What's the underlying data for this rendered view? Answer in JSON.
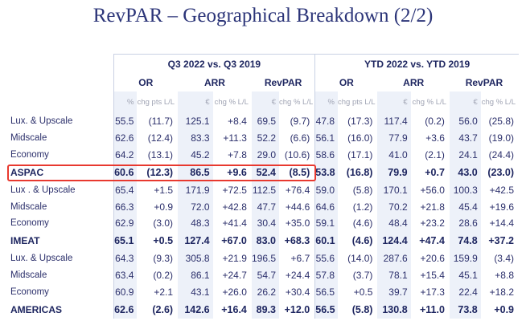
{
  "title": "RevPAR – Geographical Breakdown (2/2)",
  "period_headers": [
    "Q3 2022 vs. Q3 2019",
    "YTD 2022 vs. YTD 2019"
  ],
  "metric_headers": [
    "OR",
    "ARR",
    "RevPAR",
    "OR",
    "ARR",
    "RevPAR"
  ],
  "unit_headers": [
    "%",
    "chg pts L/L",
    "€",
    "chg % L/L",
    "€",
    "chg % L/L",
    "%",
    "chg pts L/L",
    "€",
    "chg % L/L",
    "€",
    "chg % L/L"
  ],
  "rows": [
    {
      "label": "Lux. & Upscale",
      "type": "segment",
      "v": [
        "55.5",
        "(11.7)",
        "125.1",
        "+8.4",
        "69.5",
        "(9.7)",
        "47.8",
        "(17.3)",
        "117.4",
        "(0.2)",
        "56.0",
        "(25.8)"
      ]
    },
    {
      "label": "Midscale",
      "type": "segment",
      "v": [
        "62.6",
        "(12.4)",
        "83.3",
        "+11.3",
        "52.2",
        "(6.6)",
        "56.1",
        "(16.0)",
        "77.9",
        "+3.6",
        "43.7",
        "(19.0)"
      ]
    },
    {
      "label": "Economy",
      "type": "segment",
      "v": [
        "64.2",
        "(13.1)",
        "45.2",
        "+7.8",
        "29.0",
        "(10.6)",
        "58.6",
        "(17.1)",
        "41.0",
        "(2.1)",
        "24.1",
        "(24.4)"
      ]
    },
    {
      "label": "ASPAC",
      "type": "region",
      "v": [
        "60.6",
        "(12.3)",
        "86.5",
        "+9.6",
        "52.4",
        "(8.5)",
        "53.8",
        "(16.8)",
        "79.9",
        "+0.7",
        "43.0",
        "(23.0)"
      ]
    },
    {
      "label": "Lux . & Upscale",
      "type": "segment",
      "v": [
        "65.4",
        "+1.5",
        "171.9",
        "+72.5",
        "112.5",
        "+76.4",
        "59.0",
        "(5.8)",
        "170.1",
        "+56.0",
        "100.3",
        "+42.5"
      ]
    },
    {
      "label": "Midscale",
      "type": "segment",
      "v": [
        "66.3",
        "+0.9",
        "72.0",
        "+42.8",
        "47.7",
        "+44.6",
        "64.6",
        "(1.2)",
        "70.2",
        "+21.8",
        "45.4",
        "+19.6"
      ]
    },
    {
      "label": "Economy",
      "type": "segment",
      "v": [
        "62.9",
        "(3.0)",
        "48.3",
        "+41.4",
        "30.4",
        "+35.0",
        "59.1",
        "(4.6)",
        "48.4",
        "+23.2",
        "28.6",
        "+14.4"
      ]
    },
    {
      "label": "IMEAT",
      "type": "region",
      "v": [
        "65.1",
        "+0.5",
        "127.4",
        "+67.0",
        "83.0",
        "+68.3",
        "60.1",
        "(4.6)",
        "124.4",
        "+47.4",
        "74.8",
        "+37.2"
      ]
    },
    {
      "label": "Lux. & Upscale",
      "type": "segment",
      "v": [
        "64.3",
        "(9.3)",
        "305.8",
        "+21.9",
        "196.5",
        "+6.7",
        "55.6",
        "(14.0)",
        "287.6",
        "+20.6",
        "159.9",
        "(3.4)"
      ]
    },
    {
      "label": "Midscale",
      "type": "segment",
      "v": [
        "63.4",
        "(0.2)",
        "86.1",
        "+24.7",
        "54.7",
        "+24.4",
        "57.8",
        "(3.7)",
        "78.1",
        "+15.4",
        "45.1",
        "+8.8"
      ]
    },
    {
      "label": "Economy",
      "type": "segment",
      "v": [
        "60.9",
        "+2.1",
        "43.1",
        "+26.0",
        "26.2",
        "+30.4",
        "56.5",
        "+0.5",
        "39.7",
        "+17.3",
        "22.4",
        "+18.2"
      ]
    },
    {
      "label": "AMERICAS",
      "type": "region",
      "v": [
        "62.6",
        "(2.6)",
        "142.6",
        "+16.4",
        "89.3",
        "+12.0",
        "56.5",
        "(5.8)",
        "130.8",
        "+11.0",
        "73.8",
        "+0.9"
      ]
    }
  ],
  "colors": {
    "title": "#2b3478",
    "highlight": "#e8392f",
    "shaded_column": "#edf1f9"
  }
}
